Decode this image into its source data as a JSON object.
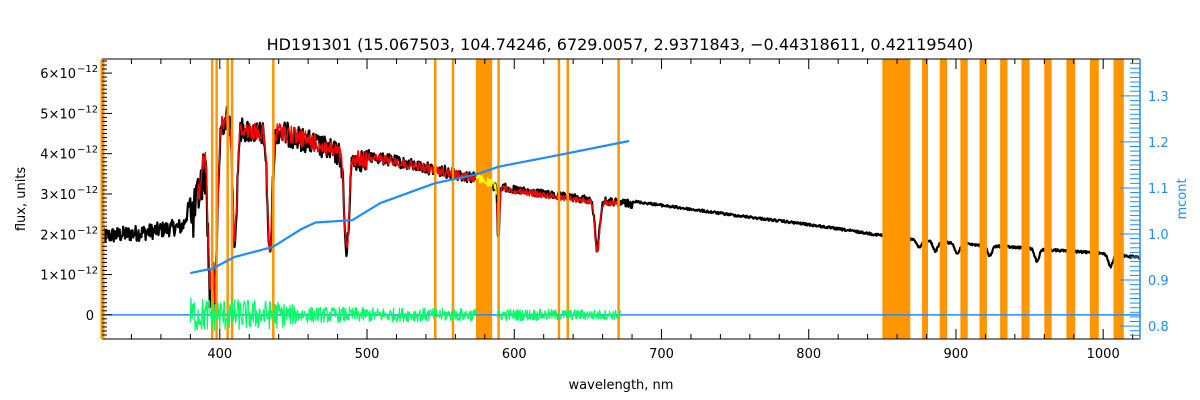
{
  "chart_data": {
    "type": "line",
    "title": "HD191301    (15.067503, 104.74246, 6729.0057, 2.9371843, −0.44318611, 0.42119540)",
    "xlabel": "wavelength, nm",
    "ylabel": "flux, units",
    "ylabel_right": "mcont",
    "xlim": [
      320,
      1025
    ],
    "ylim": [
      -0.6,
      6.35
    ],
    "ylim_right": [
      0.772,
      1.38
    ],
    "y_scale_exponent": "−12",
    "x_ticks": [
      400,
      500,
      600,
      700,
      800,
      900,
      1000
    ],
    "x_tick_labels": [
      "400",
      "500",
      "600",
      "700",
      "800",
      "900",
      "1000"
    ],
    "y_ticks": [
      0,
      1,
      2,
      3,
      4,
      5,
      6
    ],
    "y_tick_labels": [
      "0",
      "1×10",
      "2×10",
      "3×10",
      "4×10",
      "5×10",
      "6×10"
    ],
    "y_right_ticks": [
      0.8,
      0.9,
      1.0,
      1.1,
      1.2,
      1.3
    ],
    "y_right_tick_labels": [
      "0.8",
      "0.9",
      "1.0",
      "1.1",
      "1.2",
      "1.3"
    ],
    "colors": {
      "observed": "#000000",
      "model": "#ff0000",
      "masked_model": "#ffff00",
      "mcont": "#1e8cff",
      "residual": "#00ff66",
      "mask": "#ff9600"
    },
    "series": [
      {
        "name": "observed",
        "unit": "1e-12 flux",
        "range": [
          320,
          1025
        ],
        "continuum": [
          [
            320,
            1.95
          ],
          [
            350,
            2.05
          ],
          [
            375,
            2.2
          ],
          [
            382,
            3.0
          ],
          [
            390,
            4.3
          ],
          [
            400,
            4.9
          ],
          [
            405,
            5.2
          ],
          [
            415,
            4.9
          ],
          [
            425,
            4.8
          ],
          [
            440,
            4.85
          ],
          [
            460,
            4.6
          ],
          [
            480,
            4.3
          ],
          [
            500,
            4.1
          ],
          [
            520,
            3.95
          ],
          [
            540,
            3.8
          ],
          [
            560,
            3.65
          ],
          [
            580,
            3.5
          ],
          [
            590,
            3.3
          ],
          [
            600,
            3.2
          ],
          [
            640,
            3.0
          ],
          [
            680,
            2.85
          ],
          [
            700,
            2.75
          ],
          [
            750,
            2.5
          ],
          [
            800,
            2.27
          ],
          [
            850,
            2.0
          ],
          [
            900,
            1.8
          ],
          [
            950,
            1.68
          ],
          [
            1000,
            1.55
          ],
          [
            1025,
            1.45
          ]
        ],
        "lines": [
          [
            393.4,
            3.3,
            1.3
          ],
          [
            396.9,
            3.6,
            1.3
          ],
          [
            410.2,
            2.8,
            1.5
          ],
          [
            434.0,
            3.0,
            1.6
          ],
          [
            486.1,
            2.4,
            1.6
          ],
          [
            589.2,
            1.3,
            0.7
          ],
          [
            656.3,
            1.2,
            1.6
          ],
          [
            866,
            0.2,
            1.5
          ],
          [
            875,
            0.2,
            1.5
          ],
          [
            886,
            0.25,
            1.5
          ],
          [
            901,
            0.25,
            1.5
          ],
          [
            923,
            0.25,
            1.5
          ],
          [
            955,
            0.3,
            1.5
          ],
          [
            1005,
            0.3,
            1.5
          ]
        ]
      },
      {
        "name": "model",
        "range": [
          385,
          672
        ],
        "masked": [
          [
            574,
            588
          ]
        ]
      },
      {
        "name": "mcont",
        "axis": "right",
        "points": [
          [
            380,
            0.915
          ],
          [
            395,
            0.925
          ],
          [
            410,
            0.95
          ],
          [
            436,
            0.972
          ],
          [
            455,
            1.01
          ],
          [
            465,
            1.025
          ],
          [
            490,
            1.03
          ],
          [
            509,
            1.067
          ],
          [
            546,
            1.11
          ],
          [
            575,
            1.13
          ],
          [
            589,
            1.146
          ],
          [
            631,
            1.172
          ],
          [
            678,
            1.202
          ]
        ]
      },
      {
        "name": "residual",
        "range": [
          380,
          672
        ],
        "baseline": 0,
        "amplitude": [
          [
            380,
            0.45
          ],
          [
            440,
            0.35
          ],
          [
            455,
            0.2
          ],
          [
            680,
            0.12
          ]
        ],
        "gap": [
          574,
          588
        ]
      },
      {
        "name": "zero-line",
        "value": 0
      }
    ],
    "mask_regions": [
      [
        320,
        321
      ],
      [
        394,
        395
      ],
      [
        397,
        398
      ],
      [
        404.5,
        405.5
      ],
      [
        407.5,
        408.5
      ],
      [
        435.5,
        436.5
      ],
      [
        545.5,
        546.5
      ],
      [
        557.5,
        558.5
      ],
      [
        574,
        585
      ],
      [
        588.5,
        589.5
      ],
      [
        629.5,
        630.5
      ],
      [
        635.5,
        636.5
      ],
      [
        670,
        671
      ],
      [
        850,
        869
      ],
      [
        877,
        881
      ],
      [
        889,
        894
      ],
      [
        903,
        908
      ],
      [
        916,
        921
      ],
      [
        930,
        935
      ],
      [
        944.5,
        950
      ],
      [
        960,
        965
      ],
      [
        975,
        981
      ],
      [
        991,
        997
      ],
      [
        1007,
        1014
      ]
    ]
  }
}
